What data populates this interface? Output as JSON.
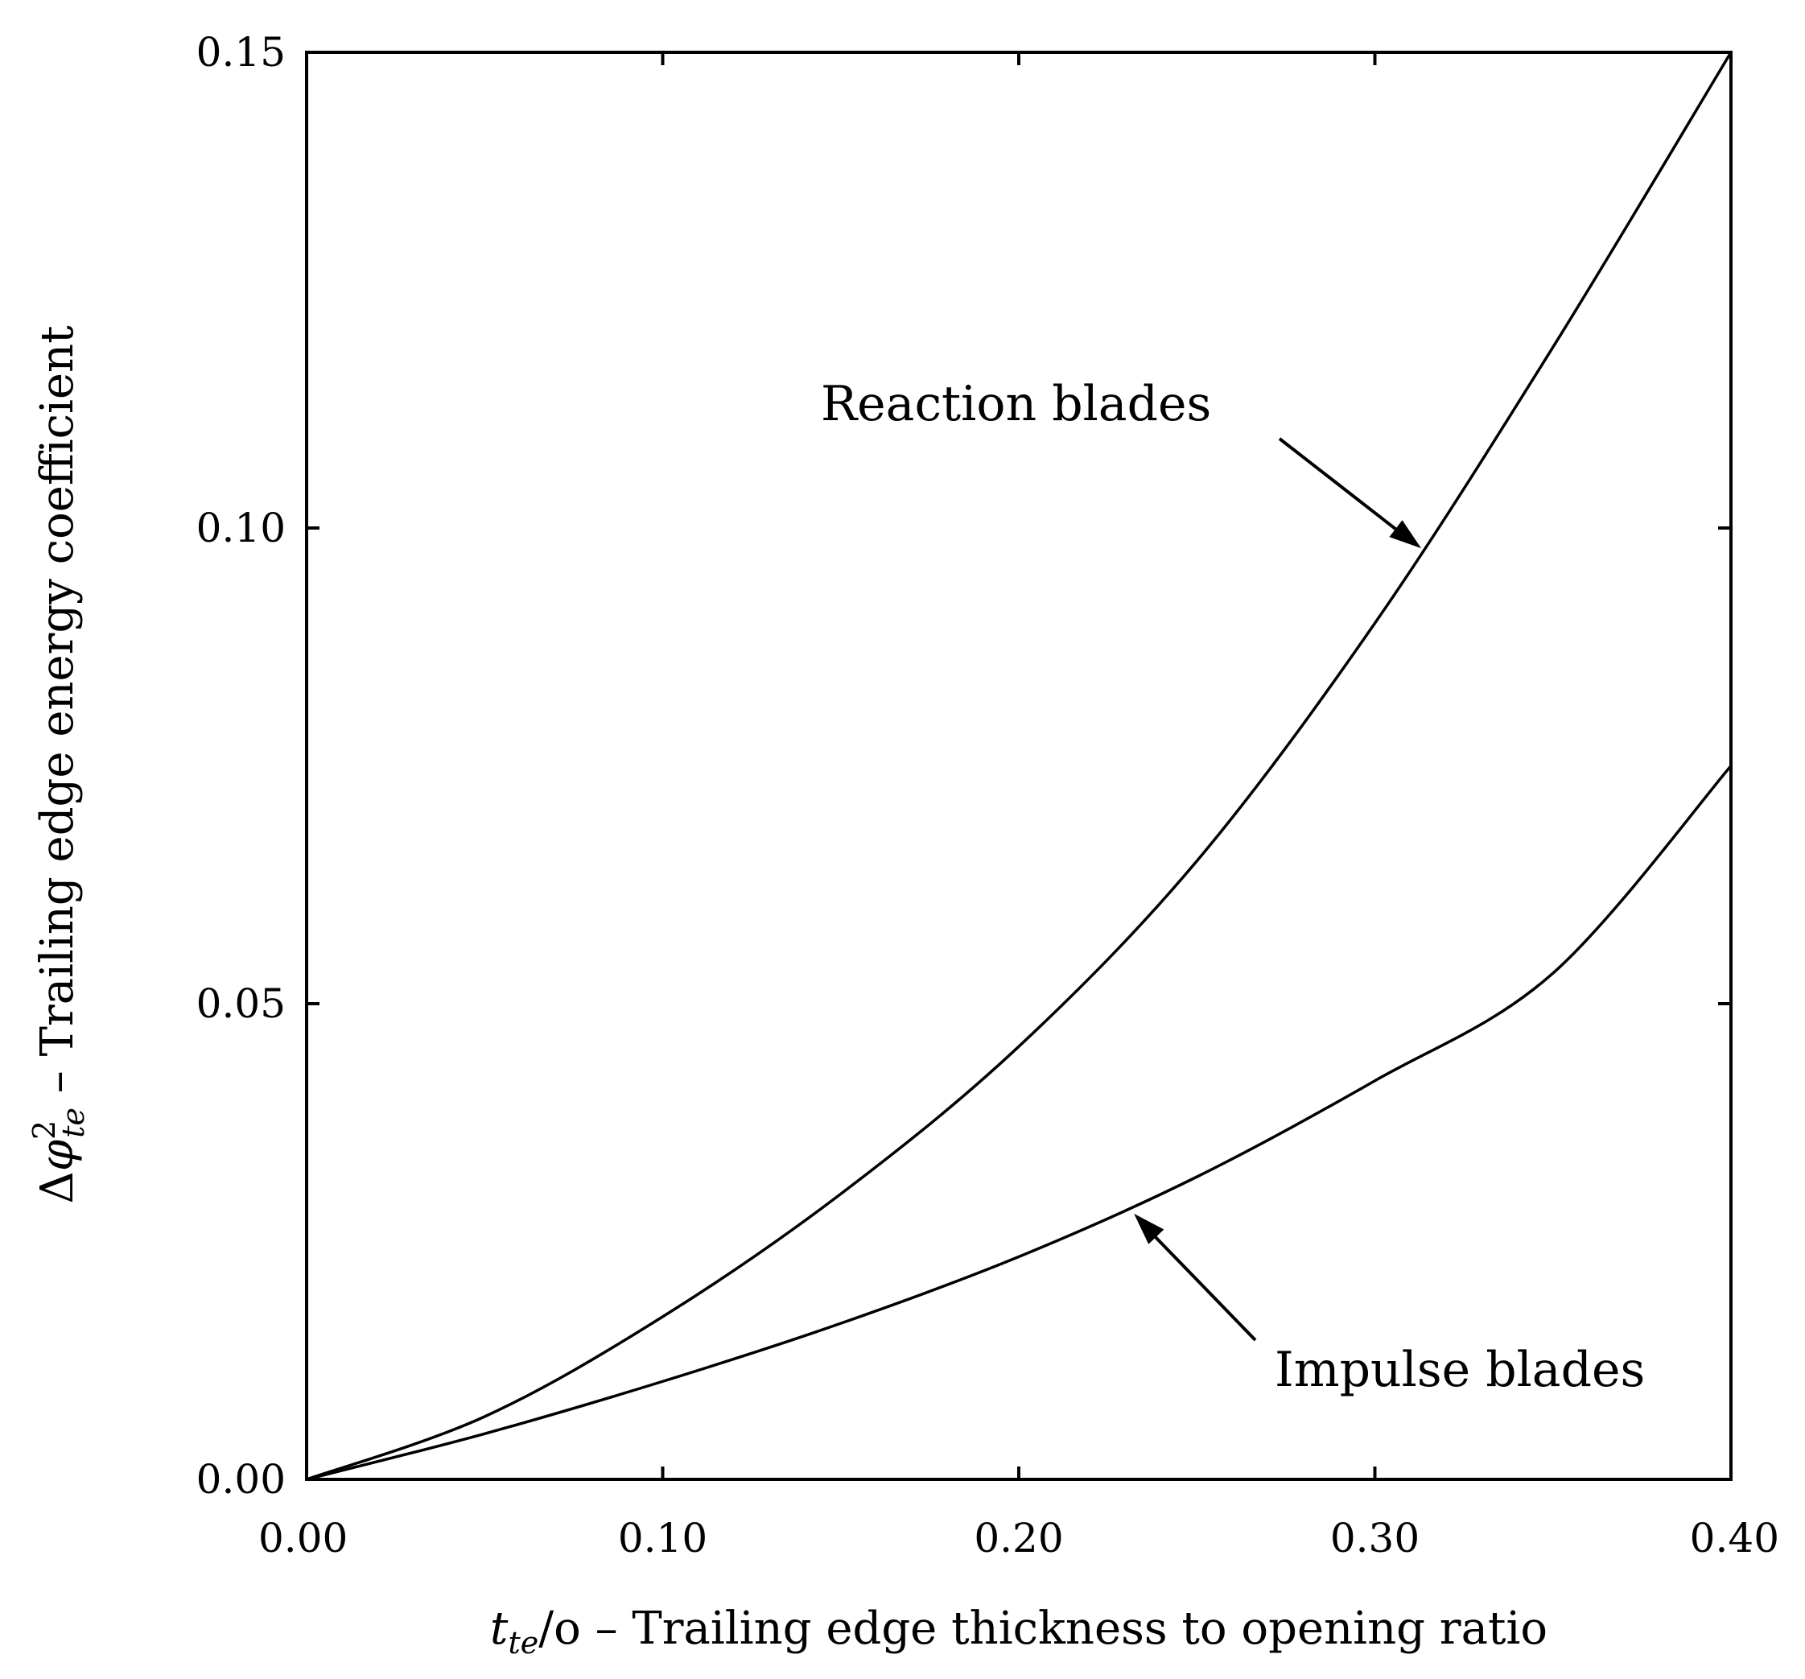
{
  "chart_data": {
    "type": "line",
    "x_ticks": [
      "0.00",
      "0.10",
      "0.20",
      "0.30",
      "0.40"
    ],
    "y_ticks": [
      "0.00",
      "0.05",
      "0.10",
      "0.15"
    ],
    "xlim": [
      0,
      0.4
    ],
    "ylim": [
      0,
      0.15
    ],
    "grid": false,
    "xlabel": {
      "main": "t",
      "sub": "te",
      "rest": "/o – Trailing edge thickness to opening ratio"
    },
    "ylabel": {
      "delta": "Δ",
      "phi": "φ",
      "sup": "2",
      "sub": "te",
      "rest": " – Trailing edge energy coefficient"
    },
    "series": [
      {
        "name": "Reaction blades",
        "x": [
          0,
          0.05,
          0.1,
          0.15,
          0.2,
          0.25,
          0.3,
          0.35,
          0.4
        ],
        "values": [
          0,
          0.0066,
          0.0171,
          0.03,
          0.0455,
          0.065,
          0.09,
          0.119,
          0.15
        ]
      },
      {
        "name": "Impulse blades",
        "x": [
          0,
          0.05,
          0.1,
          0.15,
          0.2,
          0.25,
          0.3,
          0.35,
          0.4
        ],
        "values": [
          0,
          0.0048,
          0.0103,
          0.0164,
          0.0234,
          0.0318,
          0.0419,
          0.0532,
          0.075
        ]
      }
    ],
    "annotations": [
      {
        "text": "Reaction blades",
        "series": 0,
        "points_to_x": 0.313
      },
      {
        "text": "Impulse blades",
        "series": 1,
        "points_to_x": 0.231
      }
    ]
  }
}
